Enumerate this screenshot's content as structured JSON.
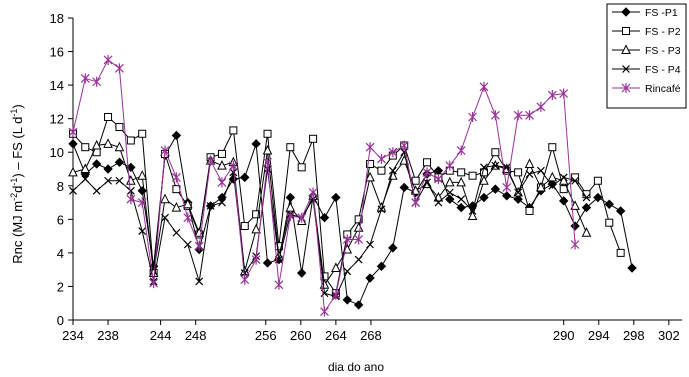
{
  "chart_data": {
    "type": "line",
    "xlabel": "dia do ano",
    "ylabel_parts": [
      "Rnc (MJ m",
      "-2",
      "d",
      "-1",
      ") – FS (L d",
      "-1",
      ")"
    ],
    "xlim": [
      234,
      303.5
    ],
    "ylim": [
      0,
      18
    ],
    "grid": false,
    "legend_position": "top-right",
    "x_ticks": [
      234,
      238,
      244,
      248,
      256,
      260,
      264,
      268,
      290,
      294,
      298,
      302
    ],
    "x_tick_labels": [
      "234",
      "238",
      "244",
      "248",
      "256",
      "260",
      "264",
      "268",
      "290",
      "294",
      "298",
      "302"
    ],
    "y_ticks": [
      0,
      2,
      4,
      6,
      8,
      10,
      12,
      14,
      16,
      18
    ],
    "y_tick_labels": [
      "0",
      "2",
      "4",
      "6",
      "8",
      "10",
      "12",
      "14",
      "16",
      "18"
    ],
    "series": [
      {
        "name": "FS -P1",
        "color": "#000000",
        "marker": "diamond",
        "points": [
          [
            234,
            10.5
          ],
          [
            235.4,
            8.7
          ],
          [
            236.7,
            9.3
          ],
          [
            238,
            9
          ],
          [
            239.3,
            9.4
          ],
          [
            240.6,
            9.1
          ],
          [
            241.9,
            7.7
          ],
          [
            243.2,
            3.2
          ],
          [
            244.5,
            9.8
          ],
          [
            245.8,
            11.0
          ],
          [
            247.1,
            7.0
          ],
          [
            248.4,
            4.2
          ],
          [
            249.7,
            6.8
          ],
          [
            251,
            7.3
          ],
          [
            252.3,
            8.4
          ],
          [
            253.6,
            8.5
          ],
          [
            254.9,
            10.5
          ],
          [
            256.2,
            3.4
          ],
          [
            257.5,
            3.6
          ],
          [
            258.8,
            7.3
          ],
          [
            260.1,
            2.8
          ],
          [
            261.4,
            7.4
          ],
          [
            262.7,
            6.1
          ],
          [
            264,
            7.3
          ],
          [
            265.3,
            1.2
          ],
          [
            266.6,
            0.9
          ],
          [
            267.9,
            2.5
          ],
          [
            269.2,
            3.2
          ],
          [
            270.5,
            4.3
          ],
          [
            271.8,
            7.9
          ],
          [
            273.1,
            7.6
          ],
          [
            274.4,
            8.7
          ],
          [
            275.7,
            8.9
          ],
          [
            277,
            7.2
          ],
          [
            278.3,
            6.7
          ],
          [
            279.6,
            6.8
          ],
          [
            280.9,
            7.3
          ],
          [
            282.2,
            7.8
          ],
          [
            283.5,
            7.4
          ],
          [
            284.8,
            7.2
          ],
          [
            286.1,
            6.7
          ],
          [
            287.4,
            7.7
          ],
          [
            288.7,
            8.1
          ],
          [
            290,
            7.1
          ],
          [
            291.3,
            5.6
          ],
          [
            292.6,
            6.7
          ],
          [
            293.9,
            7.3
          ],
          [
            295.2,
            6.9
          ],
          [
            296.5,
            6.5
          ],
          [
            297.8,
            3.1
          ]
        ]
      },
      {
        "name": "FS - P2",
        "color": "#000000",
        "marker": "square",
        "points": [
          [
            234,
            11.1
          ],
          [
            235.4,
            10.3
          ],
          [
            236.7,
            10.0
          ],
          [
            238,
            12.1
          ],
          [
            239.3,
            11.5
          ],
          [
            240.6,
            10.7
          ],
          [
            241.9,
            11.1
          ],
          [
            243.2,
            2.8
          ],
          [
            244.5,
            9.9
          ],
          [
            245.8,
            7.8
          ],
          [
            247.1,
            6.8
          ],
          [
            248.4,
            5.1
          ],
          [
            249.7,
            9.7
          ],
          [
            251,
            9.9
          ],
          [
            252.3,
            11.3
          ],
          [
            253.6,
            5.6
          ],
          [
            254.9,
            6.3
          ],
          [
            256.2,
            11.1
          ],
          [
            257.5,
            4.4
          ],
          [
            258.8,
            10.3
          ],
          [
            260.1,
            9.1
          ],
          [
            261.4,
            10.8
          ],
          [
            262.7,
            2.6
          ],
          [
            264,
            1.6
          ],
          [
            265.3,
            5.1
          ],
          [
            266.6,
            6.0
          ],
          [
            267.9,
            9.3
          ],
          [
            269.2,
            8.9
          ],
          [
            270.5,
            9.8
          ],
          [
            271.8,
            10.4
          ],
          [
            273.1,
            8.3
          ],
          [
            274.4,
            9.4
          ],
          [
            275.7,
            8.5
          ],
          [
            277,
            8.9
          ],
          [
            278.3,
            8.8
          ],
          [
            279.6,
            8.6
          ],
          [
            280.9,
            8.8
          ],
          [
            282.2,
            10.0
          ],
          [
            283.5,
            8.9
          ],
          [
            284.8,
            8.8
          ],
          [
            286.1,
            6.5
          ],
          [
            287.4,
            7.9
          ],
          [
            288.7,
            10.3
          ],
          [
            290,
            7.8
          ],
          [
            291.3,
            8.5
          ],
          [
            292.6,
            7.5
          ],
          [
            293.9,
            8.3
          ],
          [
            295.2,
            5.8
          ],
          [
            296.5,
            4.0
          ]
        ]
      },
      {
        "name": "FS - P3",
        "color": "#000000",
        "marker": "triangle",
        "points": [
          [
            234,
            8.8
          ],
          [
            235.4,
            9.0
          ],
          [
            236.7,
            10.4
          ],
          [
            238,
            10.5
          ],
          [
            239.3,
            10.3
          ],
          [
            240.6,
            8.3
          ],
          [
            241.9,
            8.6
          ],
          [
            243.2,
            2.8
          ],
          [
            244.5,
            7.2
          ],
          [
            245.8,
            6.7
          ],
          [
            247.1,
            6.9
          ],
          [
            248.4,
            5.2
          ],
          [
            249.7,
            9.5
          ],
          [
            251,
            9.2
          ],
          [
            252.3,
            9.4
          ],
          [
            253.6,
            2.9
          ],
          [
            254.9,
            5.4
          ],
          [
            256.2,
            10.1
          ],
          [
            257.5,
            3.8
          ],
          [
            258.8,
            6.7
          ],
          [
            260.1,
            5.9
          ],
          [
            261.4,
            7.4
          ],
          [
            262.7,
            2.1
          ],
          [
            264,
            3.1
          ],
          [
            265.3,
            4.2
          ],
          [
            266.6,
            5.5
          ],
          [
            267.9,
            8.5
          ],
          [
            269.2,
            6.7
          ],
          [
            270.5,
            8.6
          ],
          [
            271.8,
            9.5
          ],
          [
            273.1,
            7.7
          ],
          [
            274.4,
            8.1
          ],
          [
            275.7,
            7.3
          ],
          [
            277,
            8.2
          ],
          [
            278.3,
            8.2
          ],
          [
            279.6,
            6.2
          ],
          [
            280.9,
            8.3
          ],
          [
            282.2,
            9.2
          ],
          [
            283.5,
            9.0
          ],
          [
            284.8,
            7.6
          ],
          [
            286.1,
            9.3
          ],
          [
            287.4,
            7.9
          ],
          [
            288.7,
            8.5
          ],
          [
            290,
            8.3
          ],
          [
            291.3,
            6.8
          ],
          [
            292.6,
            5.2
          ]
        ]
      },
      {
        "name": "FS - P4",
        "color": "#000000",
        "marker": "x",
        "points": [
          [
            234,
            7.7
          ],
          [
            235.4,
            8.4
          ],
          [
            236.7,
            7.7
          ],
          [
            238,
            8.3
          ],
          [
            239.3,
            8.3
          ],
          [
            240.6,
            7.7
          ],
          [
            241.9,
            5.3
          ],
          [
            243.2,
            2.3
          ],
          [
            244.5,
            6.1
          ],
          [
            245.8,
            5.2
          ],
          [
            247.1,
            4.5
          ],
          [
            248.4,
            2.3
          ],
          [
            249.7,
            6.8
          ],
          [
            251,
            7.0
          ],
          [
            252.3,
            8.8
          ],
          [
            253.6,
            2.8
          ],
          [
            254.9,
            3.8
          ],
          [
            256.2,
            9.0
          ],
          [
            257.5,
            3.6
          ],
          [
            258.8,
            6.3
          ],
          [
            260.1,
            6.1
          ],
          [
            261.4,
            7.2
          ],
          [
            262.7,
            1.6
          ],
          [
            264,
            1.4
          ],
          [
            265.3,
            2.9
          ],
          [
            266.6,
            3.6
          ],
          [
            267.9,
            4.5
          ],
          [
            269.2,
            6.6
          ],
          [
            270.5,
            8.9
          ],
          [
            271.8,
            10.0
          ],
          [
            273.1,
            7.0
          ],
          [
            274.4,
            8.2
          ],
          [
            275.7,
            7.0
          ],
          [
            277,
            7.6
          ],
          [
            278.3,
            7.2
          ],
          [
            279.6,
            6.5
          ],
          [
            280.9,
            9.1
          ],
          [
            282.2,
            9.2
          ],
          [
            283.5,
            9.1
          ],
          [
            284.8,
            7.6
          ],
          [
            286.1,
            8.7
          ],
          [
            287.4,
            8.9
          ],
          [
            288.7,
            8.0
          ],
          [
            290,
            8.5
          ],
          [
            291.3,
            8.3
          ],
          [
            292.6,
            7.3
          ]
        ]
      },
      {
        "name": "Rincafé",
        "color": "#993399",
        "marker": "star",
        "points": [
          [
            234,
            11.2
          ],
          [
            235.4,
            14.4
          ],
          [
            236.7,
            14.2
          ],
          [
            238,
            15.5
          ],
          [
            239.3,
            15.0
          ],
          [
            240.6,
            7.2
          ],
          [
            241.9,
            7.0
          ],
          [
            243.2,
            2.2
          ],
          [
            244.5,
            10.1
          ],
          [
            245.8,
            8.5
          ],
          [
            247.1,
            6.1
          ],
          [
            248.4,
            4.4
          ],
          [
            249.7,
            9.5
          ],
          [
            251,
            8.2
          ],
          [
            252.3,
            9.2
          ],
          [
            253.6,
            2.4
          ],
          [
            254.9,
            3.6
          ],
          [
            256.2,
            9.4
          ],
          [
            257.5,
            2.1
          ],
          [
            258.8,
            6.2
          ],
          [
            260.1,
            6.1
          ],
          [
            261.4,
            7.6
          ],
          [
            262.7,
            0.5
          ],
          [
            264,
            1.5
          ],
          [
            265.3,
            4.8
          ],
          [
            266.6,
            4.8
          ],
          [
            267.9,
            10.3
          ],
          [
            269.2,
            9.6
          ],
          [
            270.5,
            10.0
          ],
          [
            271.8,
            10.4
          ],
          [
            273.1,
            7.0
          ],
          [
            274.4,
            8.8
          ],
          [
            275.7,
            8.4
          ],
          [
            277,
            9.2
          ],
          [
            278.3,
            10.1
          ],
          [
            279.6,
            12.1
          ],
          [
            280.9,
            13.9
          ],
          [
            282.2,
            12.2
          ],
          [
            283.5,
            7.9
          ],
          [
            284.8,
            12.2
          ],
          [
            286.1,
            12.2
          ],
          [
            287.4,
            12.7
          ],
          [
            288.7,
            13.4
          ],
          [
            290,
            13.5
          ],
          [
            291.3,
            4.5
          ]
        ]
      }
    ]
  }
}
